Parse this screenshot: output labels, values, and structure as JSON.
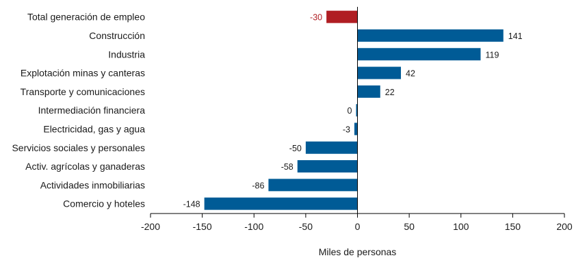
{
  "chart_data": {
    "type": "bar",
    "orientation": "horizontal",
    "title": "",
    "xlabel": "Miles de personas",
    "ylabel": "",
    "xlim": [
      -200,
      200
    ],
    "xticks": [
      -200,
      -150,
      -100,
      -50,
      0,
      50,
      100,
      150,
      200
    ],
    "grid": false,
    "categories": [
      "Total generación de empleo",
      "Construcción",
      "Industria",
      "Explotación minas y canteras",
      "Transporte y comunicaciones",
      "Intermediación financiera",
      "Electricidad, gas y agua",
      "Servicios sociales y personales",
      "Activ. agrícolas y ganaderas",
      "Actividades inmobiliarias",
      "Comercio y hoteles"
    ],
    "values": [
      -30,
      141,
      119,
      42,
      22,
      0,
      -3,
      -50,
      -58,
      -86,
      -148
    ],
    "highlight_index": 0,
    "colors": {
      "bar": "#005b96",
      "highlight": "#b01e23",
      "highlight_label": "#b01e23",
      "label": "#1a1a1a"
    }
  }
}
